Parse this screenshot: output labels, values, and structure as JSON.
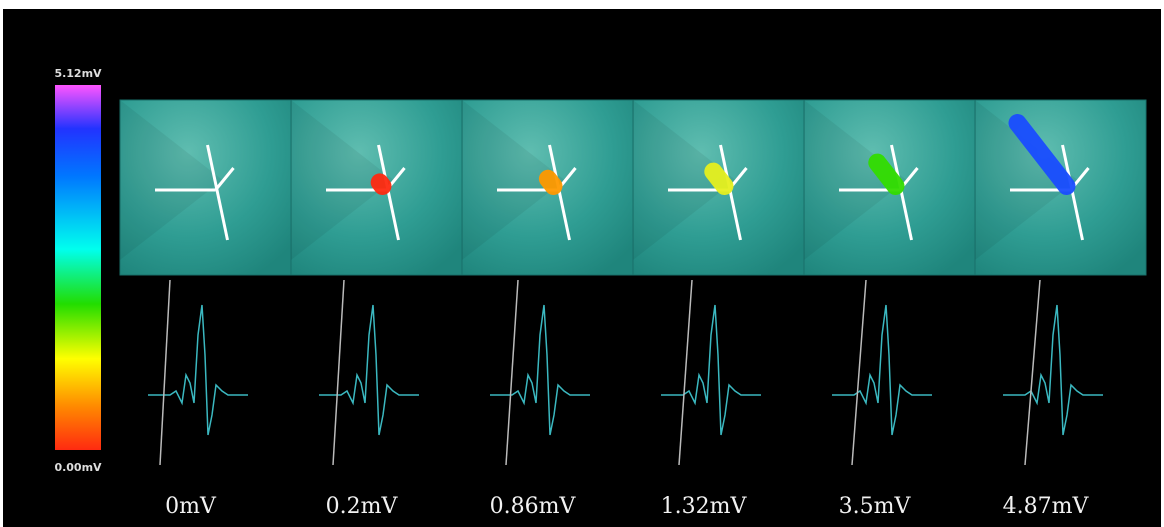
{
  "colorbar": {
    "max_label": "5.12mV",
    "min_label": "0.00mV"
  },
  "panels": [
    {
      "label": "0mV"
    },
    {
      "label": "0.2mV"
    },
    {
      "label": "0.86mV"
    },
    {
      "label": "1.32mV"
    },
    {
      "label": "3.5mV"
    },
    {
      "label": "4.87mV"
    }
  ]
}
